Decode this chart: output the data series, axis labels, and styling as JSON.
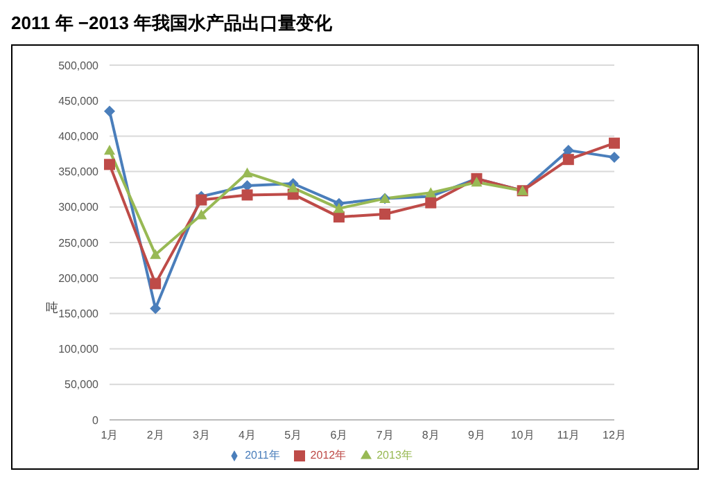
{
  "chart_data": {
    "type": "line",
    "title": "2011 年 −2013 年我国水产品出口量变化",
    "ylabel": "吨",
    "categories": [
      "1月",
      "2月",
      "3月",
      "4月",
      "5月",
      "6月",
      "7月",
      "8月",
      "9月",
      "10月",
      "11月",
      "12月"
    ],
    "series": [
      {
        "name": "2011年",
        "color": "#4a7ebb",
        "marker": "diamond",
        "values": [
          435000,
          157000,
          315000,
          330000,
          333000,
          305000,
          312000,
          315000,
          340000,
          323000,
          380000,
          370000
        ]
      },
      {
        "name": "2012年",
        "color": "#be4b48",
        "marker": "square",
        "values": [
          360000,
          192000,
          310000,
          317000,
          318000,
          286000,
          290000,
          306000,
          340000,
          323000,
          367000,
          390000
        ]
      },
      {
        "name": "2013年",
        "color": "#98b954",
        "marker": "triangle",
        "values": [
          380000,
          233000,
          289000,
          348000,
          327000,
          298000,
          312000,
          320000,
          335000,
          323000,
          null,
          null
        ]
      }
    ],
    "ylim": [
      0,
      500000
    ],
    "yticks": [
      0,
      {
        "value": 50000,
        "label": "50,000"
      },
      {
        "value": 100000,
        "label": "100,000"
      },
      {
        "value": 150000,
        "label": "150,000"
      },
      {
        "value": 200000,
        "label": "200,000"
      },
      {
        "value": 250000,
        "label": "250,000"
      },
      {
        "value": 300000,
        "label": "300,000"
      },
      {
        "value": 350000,
        "label": "350,000"
      },
      {
        "value": 400000,
        "label": "400,000"
      },
      {
        "value": 450000,
        "label": "450,000"
      },
      {
        "value": 500000,
        "label": "500,000"
      }
    ],
    "grid": "y",
    "legend": "bottom"
  }
}
